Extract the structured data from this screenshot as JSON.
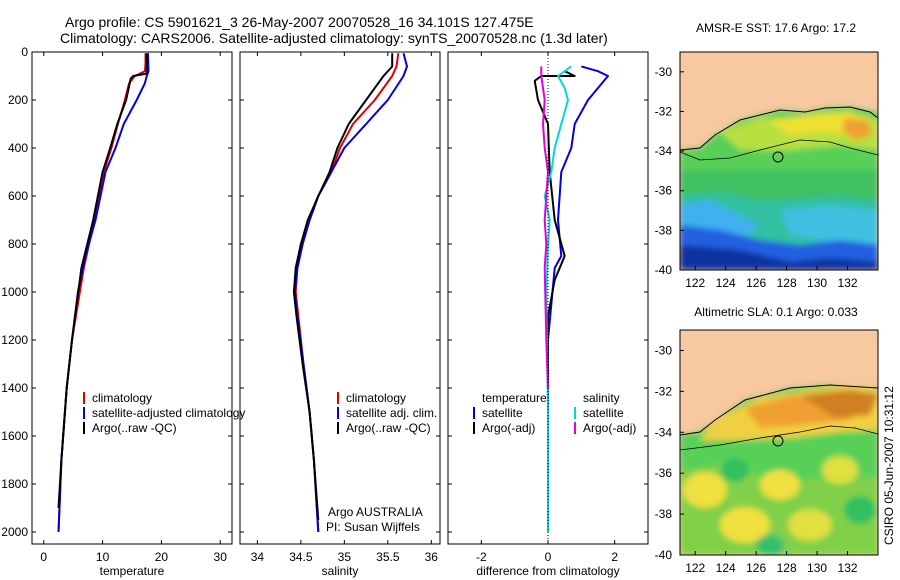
{
  "title": {
    "line1": "Argo profile: CS 5901621_3 26-May-2007 20070528_16 34.101S 127.475E",
    "line2": "Climatology: CARS2006. Satellite-adjusted climatology: synTS_20070528.nc (1.3d later)"
  },
  "side_text": "CSIRO 05-Jun-2007 10:31:12",
  "colors": {
    "climatology": "#e00000",
    "satellite": "#0000e0",
    "argo": "#000000",
    "salinity_satellite": "#00d8d8",
    "argo_adj_salinity": "#e000e0",
    "land": "#f8c8a0"
  },
  "chart_data": [
    {
      "type": "line",
      "panel": "temperature",
      "xlabel": "temperature",
      "xlim": [
        -2,
        32
      ],
      "xticks": [
        "0",
        "10",
        "20",
        "30"
      ],
      "ylim": [
        2050,
        0
      ],
      "yticks": [
        "0",
        "200",
        "400",
        "600",
        "800",
        "1000",
        "1200",
        "1400",
        "1600",
        "1800",
        "2000"
      ],
      "legend": [
        "climatology",
        "satellite-adjusted climatology",
        "Argo(..raw -QC)"
      ],
      "series": [
        {
          "name": "climatology",
          "color": "#e00000",
          "points": [
            [
              17.3,
              5
            ],
            [
              17.3,
              50
            ],
            [
              17.2,
              80
            ],
            [
              15.5,
              100
            ],
            [
              14.5,
              130
            ],
            [
              13.8,
              200
            ],
            [
              12.6,
              300
            ],
            [
              11.5,
              400
            ],
            [
              10.2,
              500
            ],
            [
              8.6,
              700
            ],
            [
              6.8,
              900
            ],
            [
              4.8,
              1200
            ],
            [
              3.9,
              1400
            ],
            [
              3.0,
              1700
            ],
            [
              2.5,
              2000
            ]
          ]
        },
        {
          "name": "satellite-adjusted climatology",
          "color": "#0000e0",
          "points": [
            [
              17.7,
              5
            ],
            [
              17.8,
              80
            ],
            [
              17.5,
              100
            ],
            [
              17.2,
              130
            ],
            [
              15.8,
              200
            ],
            [
              13.6,
              300
            ],
            [
              12.2,
              400
            ],
            [
              10.5,
              500
            ],
            [
              8.8,
              700
            ],
            [
              7.1,
              850
            ],
            [
              5.8,
              1000
            ],
            [
              4.8,
              1200
            ],
            [
              3.9,
              1400
            ],
            [
              3.0,
              1700
            ],
            [
              2.5,
              2000
            ]
          ]
        },
        {
          "name": "Argo(..raw -QC)",
          "color": "#000000",
          "points": [
            [
              17.5,
              5
            ],
            [
              17.5,
              60
            ],
            [
              17.5,
              90
            ],
            [
              15.2,
              100
            ],
            [
              14.8,
              110
            ],
            [
              14.0,
              200
            ],
            [
              12.5,
              300
            ],
            [
              11.3,
              400
            ],
            [
              10.0,
              500
            ],
            [
              8.4,
              700
            ],
            [
              6.4,
              900
            ],
            [
              4.8,
              1200
            ],
            [
              3.9,
              1400
            ],
            [
              3.0,
              1700
            ],
            [
              2.5,
              1900
            ]
          ]
        }
      ]
    },
    {
      "type": "line",
      "panel": "salinity",
      "xlabel": "salinity",
      "xlim": [
        33.8,
        36.1
      ],
      "xticks": [
        "34",
        "34.5",
        "35",
        "35.5",
        "36"
      ],
      "ylim": [
        2050,
        0
      ],
      "legend": [
        "climatology",
        "satellite adj. clim.",
        "Argo(..raw -QC)"
      ],
      "annotation": [
        "Argo AUSTRALIA",
        "PI: Susan Wijffels"
      ],
      "series": [
        {
          "name": "climatology",
          "color": "#e00000",
          "points": [
            [
              35.62,
              5
            ],
            [
              35.6,
              60
            ],
            [
              35.55,
              100
            ],
            [
              35.35,
              200
            ],
            [
              35.1,
              300
            ],
            [
              34.95,
              400
            ],
            [
              34.85,
              500
            ],
            [
              34.7,
              600
            ],
            [
              34.6,
              700
            ],
            [
              34.52,
              800
            ],
            [
              34.46,
              900
            ],
            [
              34.44,
              1000
            ],
            [
              34.47,
              1100
            ],
            [
              34.53,
              1300
            ],
            [
              34.6,
              1500
            ],
            [
              34.65,
              1700
            ],
            [
              34.7,
              2000
            ]
          ]
        },
        {
          "name": "satellite adj. clim.",
          "color": "#0000e0",
          "points": [
            [
              35.68,
              5
            ],
            [
              35.72,
              60
            ],
            [
              35.68,
              100
            ],
            [
              35.5,
              200
            ],
            [
              35.25,
              300
            ],
            [
              35.0,
              400
            ],
            [
              34.85,
              500
            ],
            [
              34.7,
              600
            ],
            [
              34.6,
              700
            ],
            [
              34.52,
              800
            ],
            [
              34.46,
              900
            ],
            [
              34.43,
              1000
            ],
            [
              34.46,
              1100
            ],
            [
              34.53,
              1300
            ],
            [
              34.6,
              1500
            ],
            [
              34.65,
              1700
            ],
            [
              34.7,
              2000
            ]
          ]
        },
        {
          "name": "Argo(..raw -QC)",
          "color": "#000000",
          "points": [
            [
              35.55,
              5
            ],
            [
              35.55,
              60
            ],
            [
              35.45,
              100
            ],
            [
              35.25,
              200
            ],
            [
              35.05,
              300
            ],
            [
              34.92,
              400
            ],
            [
              34.83,
              500
            ],
            [
              34.7,
              600
            ],
            [
              34.58,
              700
            ],
            [
              34.5,
              800
            ],
            [
              34.44,
              900
            ],
            [
              34.42,
              1000
            ],
            [
              34.45,
              1100
            ],
            [
              34.52,
              1300
            ],
            [
              34.6,
              1500
            ],
            [
              34.65,
              1700
            ],
            [
              34.7,
              1950
            ]
          ]
        }
      ]
    },
    {
      "type": "line",
      "panel": "difference",
      "xlabel": "difference from climatology",
      "xlim": [
        -3,
        3
      ],
      "xticks": [
        "-2",
        "0",
        "2"
      ],
      "ylim": [
        2050,
        0
      ],
      "legend_titles": [
        "temperature",
        "salinity"
      ],
      "legend": [
        "satellite",
        "Argo(-adj)",
        "satellite",
        "Argo(-adj)"
      ],
      "series": [
        {
          "name": "satellite",
          "variable": "temperature",
          "color": "#0000e0",
          "points": [
            [
              1.0,
              60
            ],
            [
              1.5,
              80
            ],
            [
              1.8,
              100
            ],
            [
              1.5,
              150
            ],
            [
              1.2,
              200
            ],
            [
              0.8,
              300
            ],
            [
              0.7,
              400
            ],
            [
              0.4,
              500
            ],
            [
              0.3,
              700
            ],
            [
              0.4,
              850
            ],
            [
              0.2,
              900
            ],
            [
              0.0,
              1200
            ],
            [
              0.0,
              2000
            ]
          ]
        },
        {
          "name": "Argo(-adj)",
          "variable": "temperature",
          "color": "#000000",
          "points": [
            [
              0.5,
              80
            ],
            [
              0.8,
              100
            ],
            [
              -0.2,
              100
            ],
            [
              -0.4,
              120
            ],
            [
              -0.3,
              200
            ],
            [
              0.0,
              300
            ],
            [
              0.05,
              500
            ],
            [
              0.2,
              700
            ],
            [
              0.5,
              850
            ],
            [
              0.2,
              950
            ],
            [
              0.0,
              1100
            ],
            [
              0.0,
              1400
            ]
          ]
        },
        {
          "name": "satellite",
          "variable": "salinity",
          "color": "#00d8d8",
          "points": [
            [
              0.7,
              60
            ],
            [
              0.3,
              100
            ],
            [
              0.5,
              150
            ],
            [
              0.6,
              200
            ],
            [
              0.4,
              300
            ],
            [
              0.2,
              400
            ],
            [
              0.1,
              500
            ],
            [
              -0.1,
              600
            ],
            [
              0.05,
              700
            ],
            [
              0.0,
              800
            ],
            [
              -0.05,
              1000
            ],
            [
              0.0,
              1500
            ],
            [
              0.0,
              2000
            ]
          ]
        },
        {
          "name": "Argo(-adj)",
          "variable": "salinity",
          "color": "#e000e0",
          "points": [
            [
              -0.2,
              60
            ],
            [
              -0.2,
              100
            ],
            [
              -0.1,
              200
            ],
            [
              -0.15,
              300
            ],
            [
              -0.1,
              400
            ],
            [
              0.0,
              500
            ],
            [
              -0.1,
              700
            ],
            [
              -0.05,
              800
            ],
            [
              -0.1,
              900
            ],
            [
              -0.05,
              1200
            ],
            [
              0.0,
              1400
            ]
          ]
        }
      ]
    },
    {
      "type": "heatmap",
      "panel": "map",
      "title": "AMSR-E SST: 17.6 Argo: 17.2",
      "xticks": [
        "122",
        "124",
        "126",
        "128",
        "130",
        "132"
      ],
      "yticks": [
        "-30",
        "-32",
        "-34",
        "-36",
        "-38",
        "-40"
      ],
      "xlim": [
        121,
        134
      ],
      "ylim": [
        -40,
        -29
      ]
    },
    {
      "type": "heatmap",
      "panel": "map",
      "title": "Altimetric SLA: 0.1 Argo: 0.033",
      "xticks": [
        "122",
        "124",
        "126",
        "128",
        "130",
        "132"
      ],
      "yticks": [
        "-30",
        "-32",
        "-34",
        "-36",
        "-38",
        "-40"
      ],
      "xlim": [
        121,
        134
      ],
      "ylim": [
        -40,
        -29
      ]
    }
  ]
}
